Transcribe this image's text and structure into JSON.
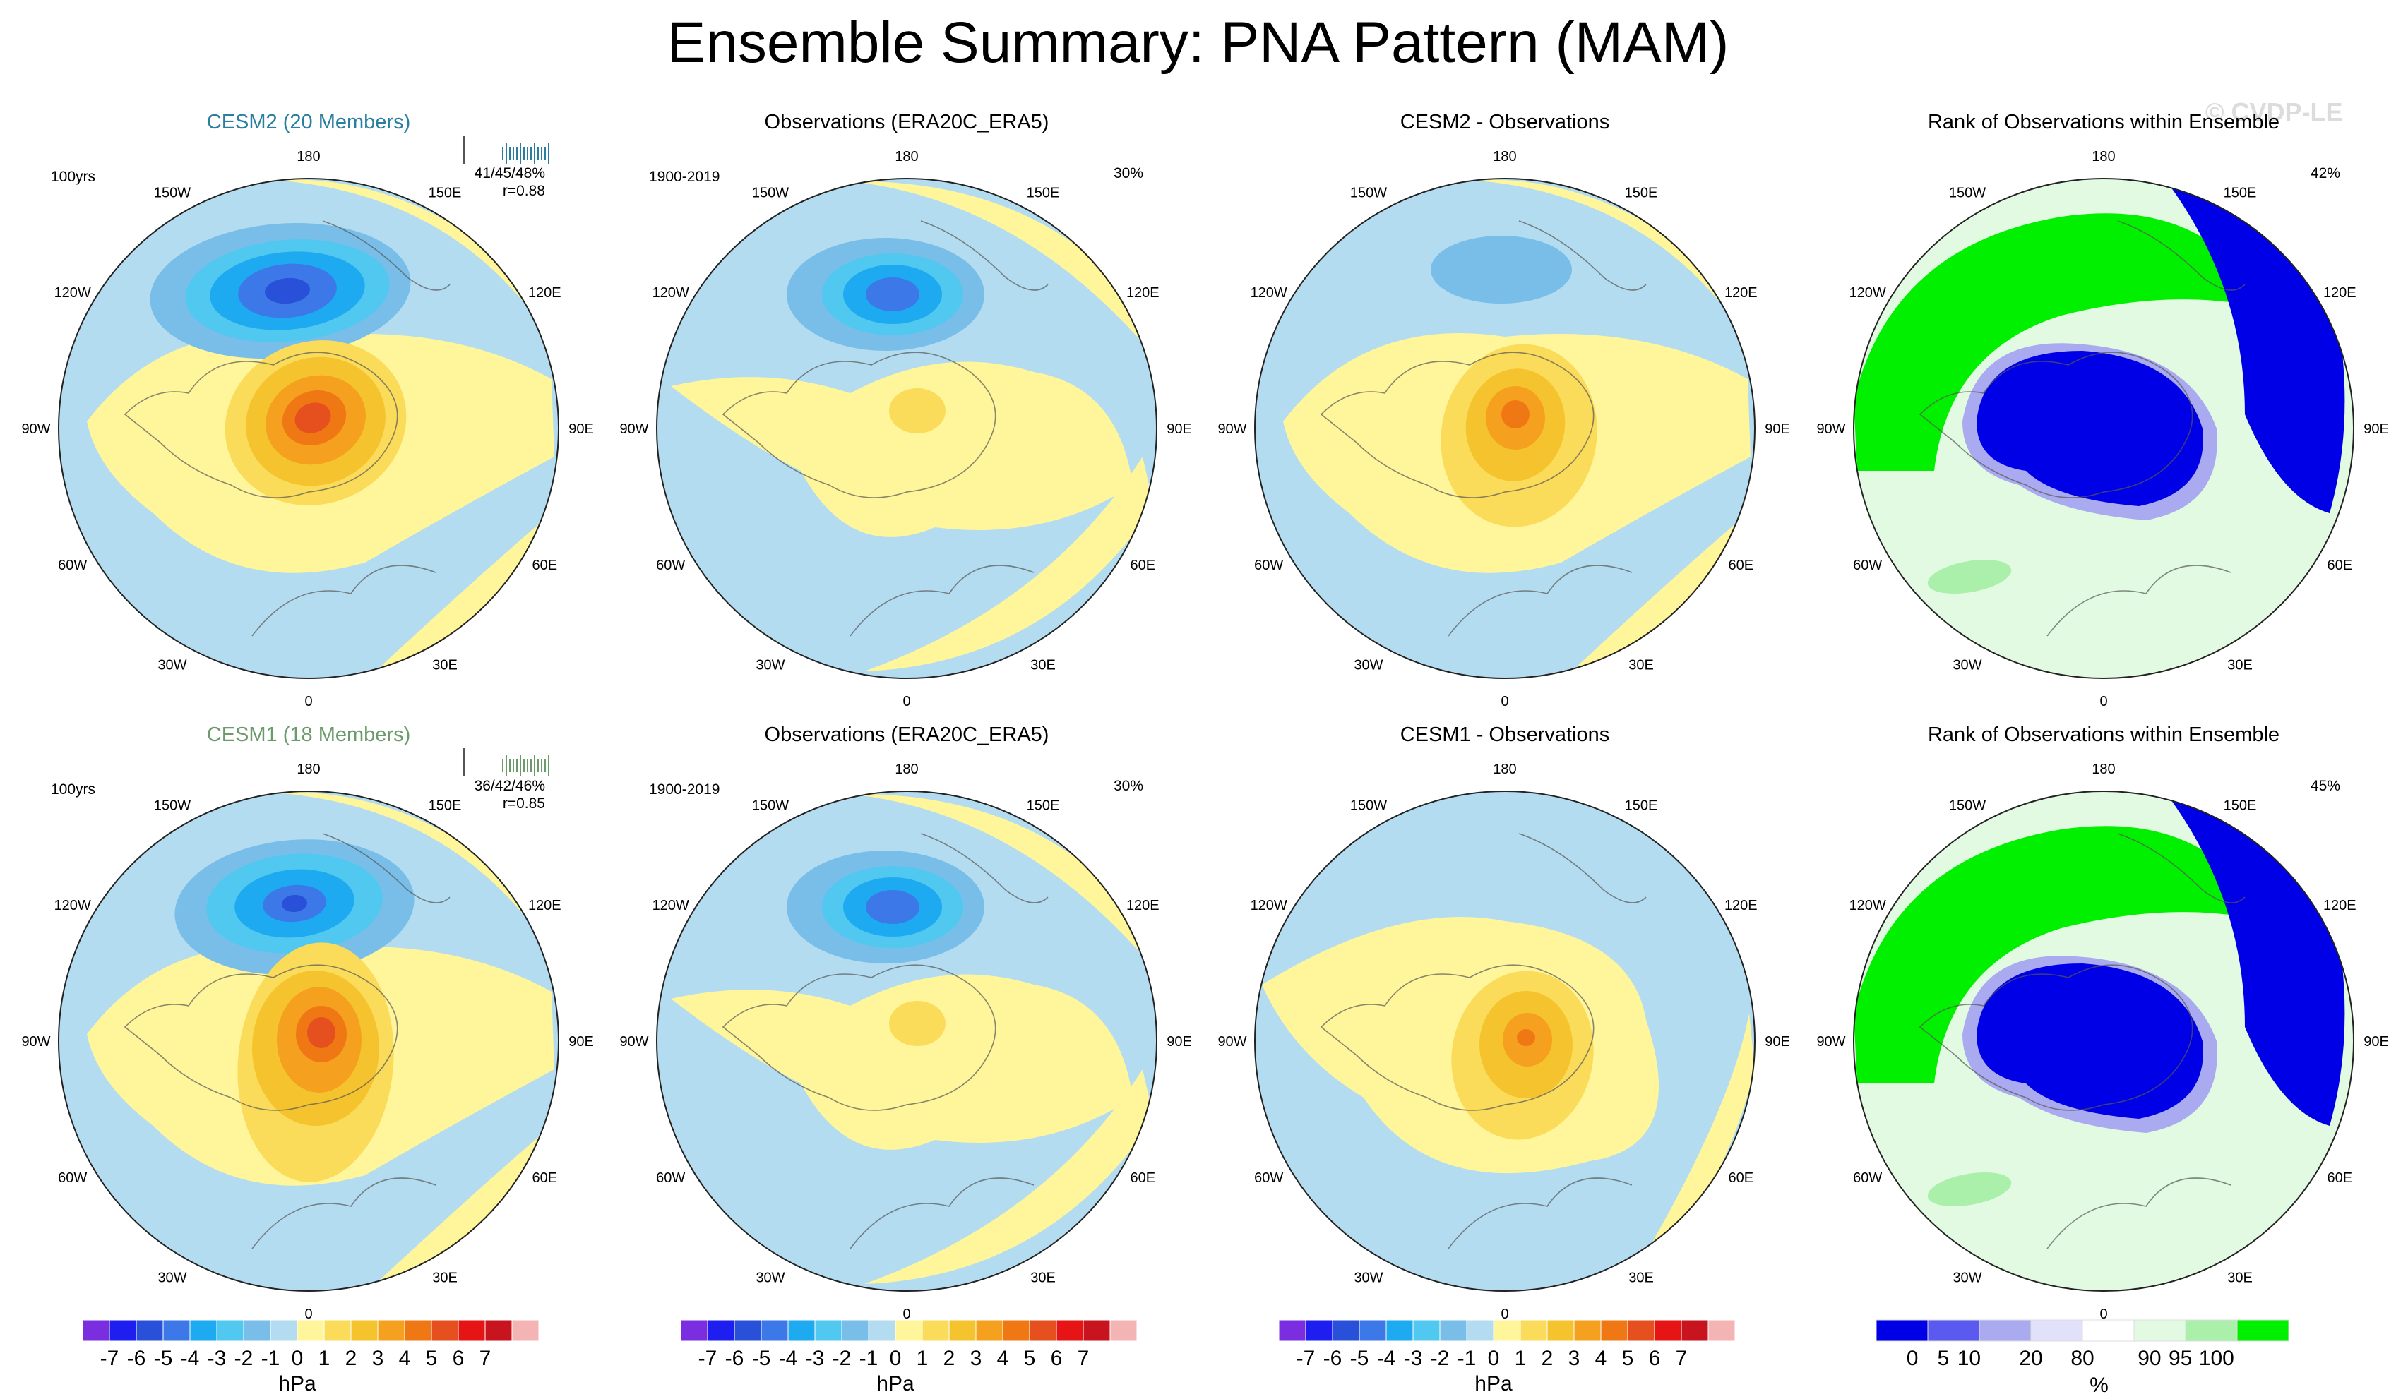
{
  "title": "Ensemble Summary: PNA Pattern (MAM)",
  "watermark": "© CVDP-LE",
  "lon_labels": [
    "180",
    "150E",
    "120E",
    "90E",
    "60E",
    "30E",
    "0",
    "30W",
    "60W",
    "90W",
    "120W",
    "150W"
  ],
  "colors": {
    "cesm2": "#2a7fa0",
    "cesm1": "#6b9a6b",
    "ocean_neg": "#b4dcf0",
    "land_pos": "#fff59b"
  },
  "rows": [
    {
      "panels": [
        {
          "title": "CESM2 (20 Members)",
          "type": "model",
          "pattern": "cesm2",
          "left_note": "100yrs",
          "right_note_1": "41/45/48%",
          "right_note_2": "r=0.88"
        },
        {
          "title": "Observations (ERA20C_ERA5)",
          "type": "obs",
          "pattern": "obs",
          "left_note": "1900-2019",
          "right_note_1": "30%"
        },
        {
          "title": "CESM2 - Observations",
          "type": "diff",
          "pattern": "diff2"
        },
        {
          "title": "Rank of Observations within Ensemble",
          "type": "rank",
          "pattern": "rank",
          "right_note_1": "42%"
        }
      ]
    },
    {
      "panels": [
        {
          "title": "CESM1 (18 Members)",
          "type": "model",
          "pattern": "cesm1",
          "left_note": "100yrs",
          "right_note_1": "36/42/46%",
          "right_note_2": "r=0.85"
        },
        {
          "title": "Observations (ERA20C_ERA5)",
          "type": "obs",
          "pattern": "obs",
          "left_note": "1900-2019",
          "right_note_1": "30%"
        },
        {
          "title": "CESM1 - Observations",
          "type": "diff",
          "pattern": "diff1"
        },
        {
          "title": "Rank of Observations within Ensemble",
          "type": "rank",
          "pattern": "rank",
          "right_note_1": "45%"
        }
      ]
    }
  ],
  "hpa_colorbar": {
    "unit": "hPa",
    "labels": [
      "-7",
      "-6",
      "-5",
      "-4",
      "-3",
      "-2",
      "-1",
      "0",
      "1",
      "2",
      "3",
      "4",
      "5",
      "6",
      "7"
    ],
    "colors": [
      "#7b2ee0",
      "#1e1ef0",
      "#2850d8",
      "#3c78e8",
      "#1eaaf0",
      "#50c8f0",
      "#78bee8",
      "#b4dcf0",
      "#fff59b",
      "#fadc5a",
      "#f5c32d",
      "#f5a01e",
      "#f07814",
      "#e6501e",
      "#e61414",
      "#c8141e",
      "#f5b4b4"
    ]
  },
  "rank_colorbar": {
    "unit": "%",
    "labels": [
      "0",
      "5",
      "10",
      "20",
      "80",
      "90",
      "95",
      "100"
    ],
    "colors": [
      "#0000e6",
      "#5a5af0",
      "#aaaaf0",
      "#e1e1fa",
      "#ffffff",
      "#e1fae1",
      "#aaf0aa",
      "#00f000"
    ]
  },
  "chart_data": {
    "type": "heatmap",
    "description_units": "hPa",
    "contour_levels_hPa": [
      -7,
      -6,
      -5,
      -4,
      -3,
      -2,
      -1,
      0,
      1,
      2,
      3,
      4,
      5,
      6,
      7
    ],
    "rank_levels_percent": [
      0,
      5,
      10,
      20,
      80,
      90,
      95,
      100
    ],
    "panels": [
      {
        "title": "CESM2 (20 Members)",
        "min_approx_hPa": -6,
        "max_approx_hPa": 6
      },
      {
        "title": "Observations (ERA20C_ERA5)",
        "min_approx_hPa": -5,
        "max_approx_hPa": 2
      },
      {
        "title": "CESM2 - Observations",
        "min_approx_hPa": -2,
        "max_approx_hPa": 4
      },
      {
        "title": "Rank of Observations within Ensemble",
        "summary": "42%"
      },
      {
        "title": "CESM1 (18 Members)",
        "min_approx_hPa": -5,
        "max_approx_hPa": 5
      },
      {
        "title": "Observations (ERA20C_ERA5)",
        "min_approx_hPa": -5,
        "max_approx_hPa": 2
      },
      {
        "title": "CESM1 - Observations",
        "min_approx_hPa": -1,
        "max_approx_hPa": 4
      },
      {
        "title": "Rank of Observations within Ensemble",
        "summary": "45%"
      }
    ]
  }
}
